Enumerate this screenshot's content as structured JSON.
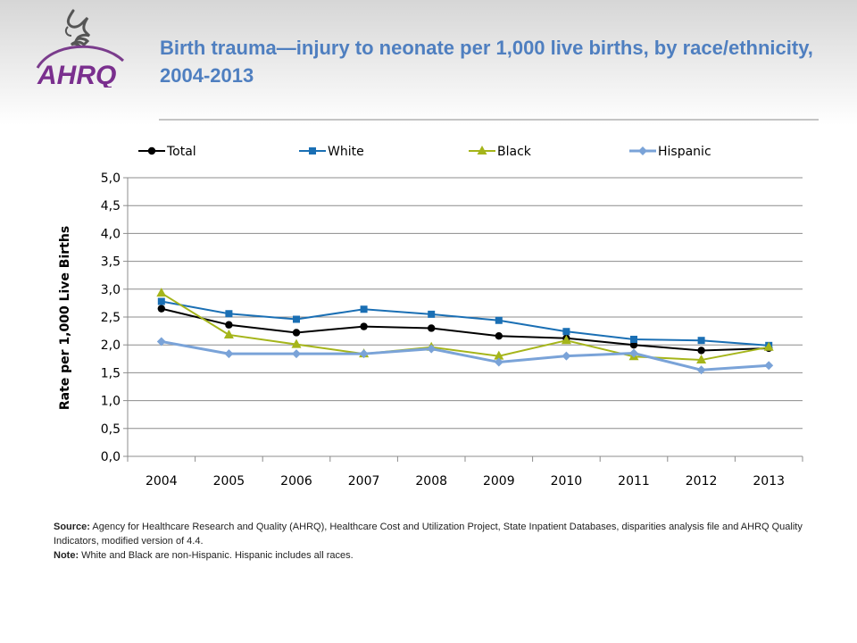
{
  "header": {
    "title": "Birth trauma—injury to neonate per 1,000 live births, by race/ethnicity, 2004-2013"
  },
  "logo": {
    "text": "AHRQ",
    "icon": "hhs-eagle-icon"
  },
  "notes": {
    "source_label": "Source:",
    "source_text": "Agency for Healthcare Research and Quality (AHRQ), Healthcare Cost and Utilization Project, State Inpatient Databases, disparities analysis file and AHRQ Quality Indicators, modified version of 4.4.",
    "note_label": "Note:",
    "note_text": "White and Black are non-Hispanic. Hispanic includes all races."
  },
  "chart_data": {
    "type": "line",
    "title": "",
    "xlabel": "",
    "ylabel": "Rate per 1,000 Live Births",
    "x": [
      "2004",
      "2005",
      "2006",
      "2007",
      "2008",
      "2009",
      "2010",
      "2011",
      "2012",
      "2013"
    ],
    "ylim": [
      0,
      5
    ],
    "yticks": [
      "0,0",
      "0,5",
      "1,0",
      "1,5",
      "2,0",
      "2,5",
      "3,0",
      "3,5",
      "4,0",
      "4,5",
      "5,0"
    ],
    "grid": true,
    "legend_position": "top",
    "series": [
      {
        "name": "Total",
        "color": "#000000",
        "marker": "circle",
        "values": [
          2.65,
          2.36,
          2.22,
          2.33,
          2.3,
          2.16,
          2.12,
          2.0,
          1.9,
          1.94
        ]
      },
      {
        "name": "White",
        "color": "#1a6fb4",
        "marker": "square",
        "values": [
          2.78,
          2.56,
          2.46,
          2.64,
          2.55,
          2.44,
          2.24,
          2.1,
          2.08,
          1.99
        ]
      },
      {
        "name": "Black",
        "color": "#a5b51a",
        "marker": "triangle",
        "values": [
          2.93,
          2.18,
          2.01,
          1.84,
          1.96,
          1.8,
          2.08,
          1.79,
          1.73,
          1.96
        ]
      },
      {
        "name": "Hispanic",
        "color": "#7aa3d8",
        "marker": "diamond",
        "values": [
          2.06,
          1.84,
          1.84,
          1.84,
          1.93,
          1.69,
          1.8,
          1.85,
          1.55,
          1.63
        ]
      }
    ]
  }
}
